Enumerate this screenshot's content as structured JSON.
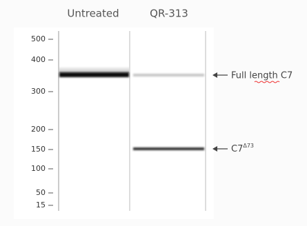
{
  "lanes": [
    "Untreated",
    "QR-313"
  ],
  "markers": [
    "500",
    "400",
    "300",
    "200",
    "150",
    "100",
    "50",
    "15"
  ],
  "annotations": [
    {
      "label": "Full length C7"
    },
    {
      "label": "C7",
      "superscript": "Δ73"
    }
  ]
}
